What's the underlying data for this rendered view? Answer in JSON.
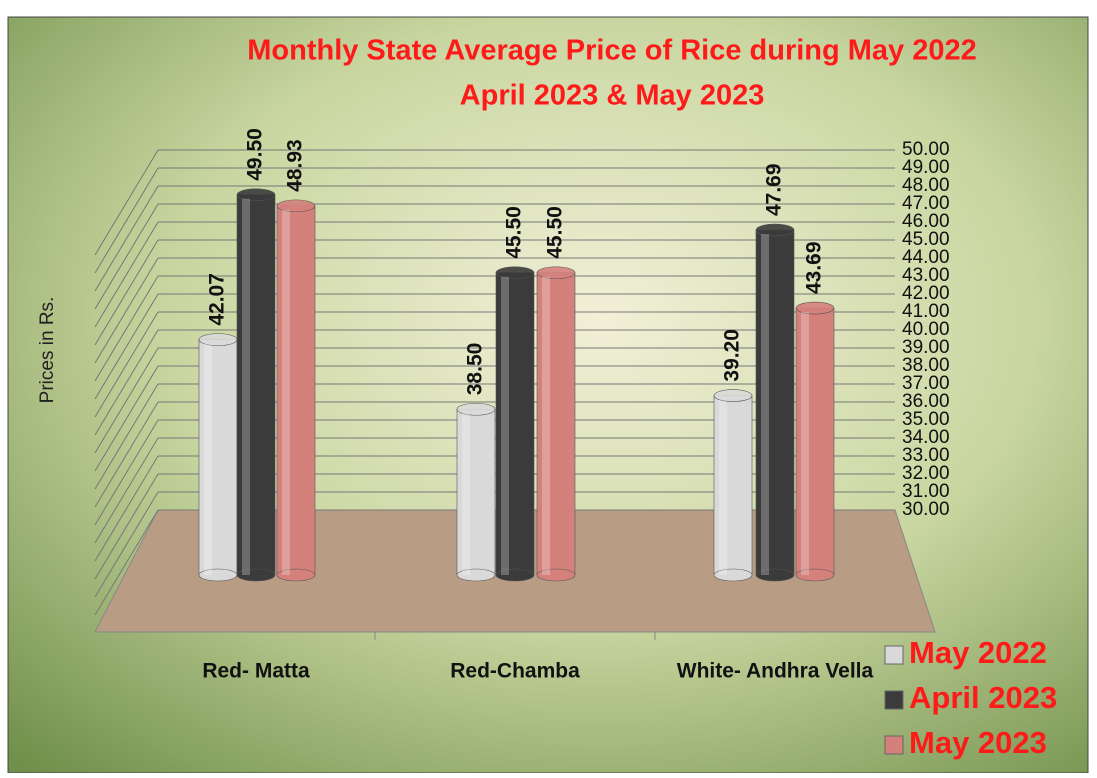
{
  "chart_data": {
    "type": "bar",
    "title": "Monthly State Average Price of Rice during  May 2022",
    "subtitle": "April  2023  &  May  2023",
    "y_label": "Prices in Rs.",
    "categories": [
      "Red- Matta",
      "Red-Chamba",
      "White- Andhra Vella"
    ],
    "series": [
      {
        "name": "May 2022",
        "color": "#d9d9d9",
        "values": [
          42.07,
          38.5,
          39.2
        ],
        "value_labels": [
          "42.07",
          "38.50",
          "39.20"
        ]
      },
      {
        "name": "April 2023",
        "color": "#3b3b3b",
        "values": [
          49.5,
          45.5,
          47.69
        ],
        "value_labels": [
          "49.50",
          "45.50",
          "47.69"
        ]
      },
      {
        "name": "May 2023",
        "color": "#d4817c",
        "values": [
          48.93,
          45.5,
          43.69
        ],
        "value_labels": [
          "48.93",
          "45.50",
          "43.69"
        ]
      }
    ],
    "ylim": [
      30,
      50
    ],
    "yticks": [
      {
        "value": 30,
        "label": "30.00"
      },
      {
        "value": 31,
        "label": "31.00"
      },
      {
        "value": 32,
        "label": "32.00"
      },
      {
        "value": 33,
        "label": "33.00"
      },
      {
        "value": 34,
        "label": "34.00"
      },
      {
        "value": 35,
        "label": "35.00"
      },
      {
        "value": 36,
        "label": "36.00"
      },
      {
        "value": 37,
        "label": "37.00"
      },
      {
        "value": 38,
        "label": "38.00"
      },
      {
        "value": 39,
        "label": "39.00"
      },
      {
        "value": 40,
        "label": "40.00"
      },
      {
        "value": 41,
        "label": "41.00"
      },
      {
        "value": 42,
        "label": "42.00"
      },
      {
        "value": 43,
        "label": "43.00"
      },
      {
        "value": 44,
        "label": "44.00"
      },
      {
        "value": 45,
        "label": "45.00"
      },
      {
        "value": 46,
        "label": "46.00"
      },
      {
        "value": 47,
        "label": "47.00"
      },
      {
        "value": 48,
        "label": "48.00"
      },
      {
        "value": 49,
        "label": "49.00"
      },
      {
        "value": 50,
        "label": "50.00"
      }
    ],
    "grid": true,
    "legend": "bottom-right"
  }
}
